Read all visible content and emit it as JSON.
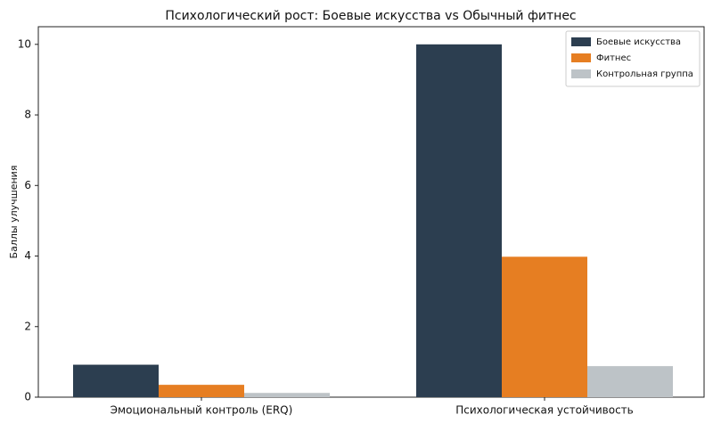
{
  "chart_data": {
    "type": "bar",
    "title": "Психологический рост: Боевые искусства vs Обычный фитнес",
    "y_label": "Баллы улучшения",
    "categories": [
      "Эмоциональный контроль (ERQ)",
      "Психологическая устойчивость"
    ],
    "series": [
      {
        "name": "Боевые искусства",
        "color": "#2c3e50",
        "values": [
          0.92,
          10.0
        ]
      },
      {
        "name": "Фитнес",
        "color": "#e67e22",
        "values": [
          0.35,
          3.98
        ]
      },
      {
        "name": "Контрольная группа",
        "color": "#bdc3c7",
        "values": [
          0.12,
          0.88
        ]
      }
    ],
    "ylim": [
      0,
      10.5
    ],
    "yticks": [
      0,
      2,
      4,
      6,
      8,
      10
    ],
    "grid": false,
    "legend": "upper right"
  }
}
